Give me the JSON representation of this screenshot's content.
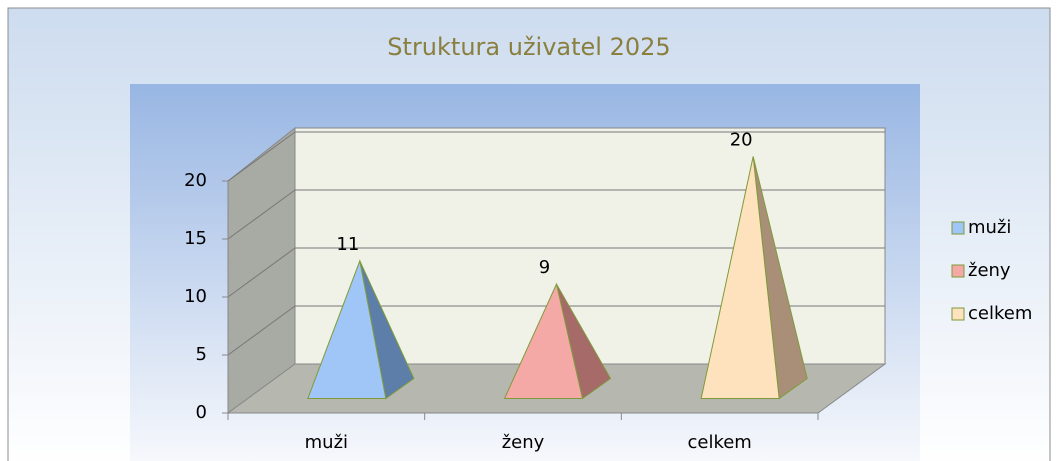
{
  "chart_data": {
    "type": "pyramid",
    "title": "Struktura uživatel 2025",
    "categories": [
      "muži",
      "ženy",
      "celkem"
    ],
    "values": [
      11,
      9,
      20
    ],
    "colors": [
      "#9fc6f6",
      "#f4a9a6",
      "#fde2bd"
    ],
    "side_colors": [
      "#5d7ea8",
      "#a66a68",
      "#a98f78"
    ],
    "ylim": [
      0,
      20
    ],
    "yticks": [
      0,
      5,
      10,
      15,
      20
    ],
    "grid": true,
    "legend": "right"
  }
}
